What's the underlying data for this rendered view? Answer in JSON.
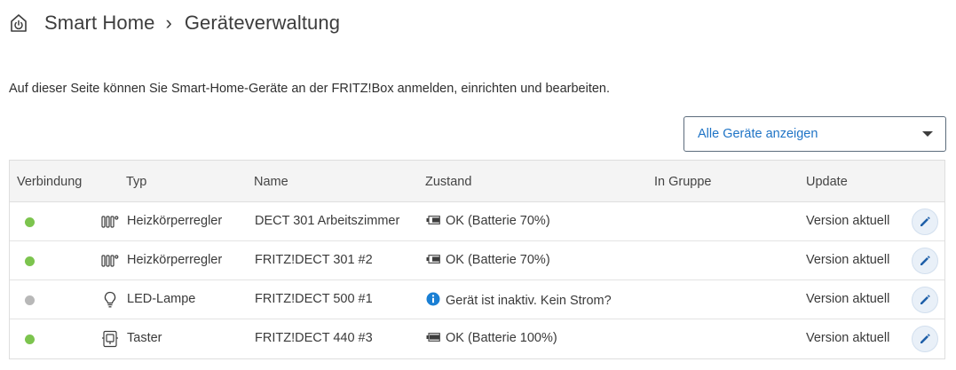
{
  "header": {
    "crumb_home": "Smart Home",
    "separator": "›",
    "crumb_current": "Geräteverwaltung",
    "icon": "smart-home-power-icon"
  },
  "intro_text": "Auf dieser Seite können Sie Smart-Home-Geräte an der FRITZ!Box anmelden, einrichten und bearbeiten.",
  "filter": {
    "selected": "Alle Geräte anzeigen"
  },
  "table": {
    "columns": [
      "Verbindung",
      "Typ",
      "Name",
      "Zustand",
      "In Gruppe",
      "Update"
    ],
    "rows": [
      {
        "connection": "connected",
        "connection_color": "#7cc44e",
        "type_icon": "radiator-icon",
        "type": "Heizkörperregler",
        "name": "DECT 301 Arbeitszimmer",
        "state_icon": "battery-icon",
        "battery_level": 0.7,
        "state": "OK (Batterie 70%)",
        "group": "",
        "update": "Version aktuell"
      },
      {
        "connection": "connected",
        "connection_color": "#7cc44e",
        "type_icon": "radiator-icon",
        "type": "Heizkörperregler",
        "name": "FRITZ!DECT 301 #2",
        "state_icon": "battery-icon",
        "battery_level": 0.7,
        "state": "OK (Batterie 70%)",
        "group": "",
        "update": "Version aktuell"
      },
      {
        "connection": "inactive",
        "connection_color": "#b8b8b8",
        "type_icon": "bulb-icon",
        "type": "LED-Lampe",
        "name": "FRITZ!DECT 500 #1",
        "state_icon": "info-icon",
        "battery_level": null,
        "state": "Gerät ist inaktiv. Kein Strom?",
        "group": "",
        "update": "Version aktuell"
      },
      {
        "connection": "connected",
        "connection_color": "#7cc44e",
        "type_icon": "switch-icon",
        "type": "Taster",
        "name": "FRITZ!DECT 440 #3",
        "state_icon": "battery-icon",
        "battery_level": 1.0,
        "state": "OK (Batterie 100%)",
        "group": "",
        "update": "Version aktuell"
      }
    ]
  },
  "colors": {
    "accent": "#1f74c6",
    "info": "#1a7fd4",
    "edit_bg": "#e9f0f8"
  }
}
